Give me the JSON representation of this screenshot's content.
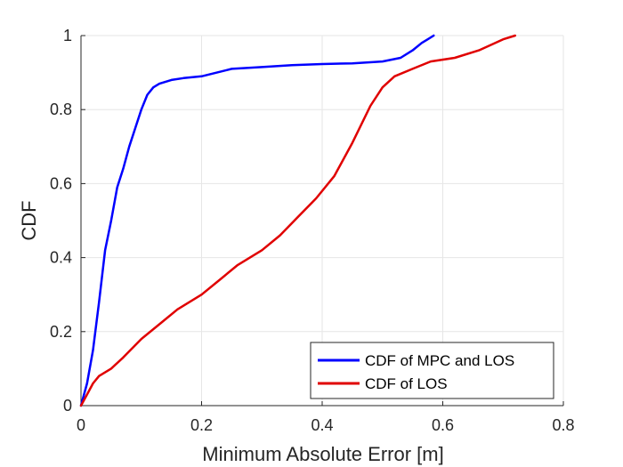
{
  "chart_data": {
    "type": "line",
    "title": "",
    "xlabel": "Minimum Absolute Error [m]",
    "ylabel": "CDF",
    "xlim": [
      0,
      0.8
    ],
    "ylim": [
      0,
      1
    ],
    "x_ticks": [
      "0",
      "0.2",
      "0.4",
      "0.6",
      "0.8"
    ],
    "y_ticks": [
      "0",
      "0.2",
      "0.4",
      "0.6",
      "0.8",
      "1"
    ],
    "grid": true,
    "legend_position": "bottom-right",
    "series": [
      {
        "name": "CDF of MPC and LOS",
        "color": "#0000ff",
        "x": [
          0,
          0.01,
          0.02,
          0.03,
          0.04,
          0.05,
          0.06,
          0.07,
          0.08,
          0.09,
          0.1,
          0.11,
          0.12,
          0.13,
          0.15,
          0.17,
          0.2,
          0.25,
          0.3,
          0.35,
          0.4,
          0.45,
          0.5,
          0.53,
          0.55,
          0.565,
          0.575,
          0.585
        ],
        "y": [
          0,
          0.06,
          0.15,
          0.28,
          0.42,
          0.5,
          0.59,
          0.64,
          0.7,
          0.75,
          0.8,
          0.84,
          0.86,
          0.87,
          0.88,
          0.885,
          0.89,
          0.91,
          0.915,
          0.92,
          0.923,
          0.925,
          0.93,
          0.94,
          0.96,
          0.98,
          0.99,
          1.0
        ]
      },
      {
        "name": "CDF of LOS",
        "color": "#e00000",
        "x": [
          0,
          0.01,
          0.02,
          0.03,
          0.05,
          0.07,
          0.1,
          0.13,
          0.16,
          0.2,
          0.23,
          0.26,
          0.3,
          0.33,
          0.36,
          0.39,
          0.42,
          0.45,
          0.48,
          0.5,
          0.52,
          0.55,
          0.58,
          0.62,
          0.66,
          0.7,
          0.72
        ],
        "y": [
          0,
          0.03,
          0.06,
          0.08,
          0.1,
          0.13,
          0.18,
          0.22,
          0.26,
          0.3,
          0.34,
          0.38,
          0.42,
          0.46,
          0.51,
          0.56,
          0.62,
          0.71,
          0.81,
          0.86,
          0.89,
          0.91,
          0.93,
          0.94,
          0.96,
          0.99,
          1.0
        ]
      }
    ]
  }
}
